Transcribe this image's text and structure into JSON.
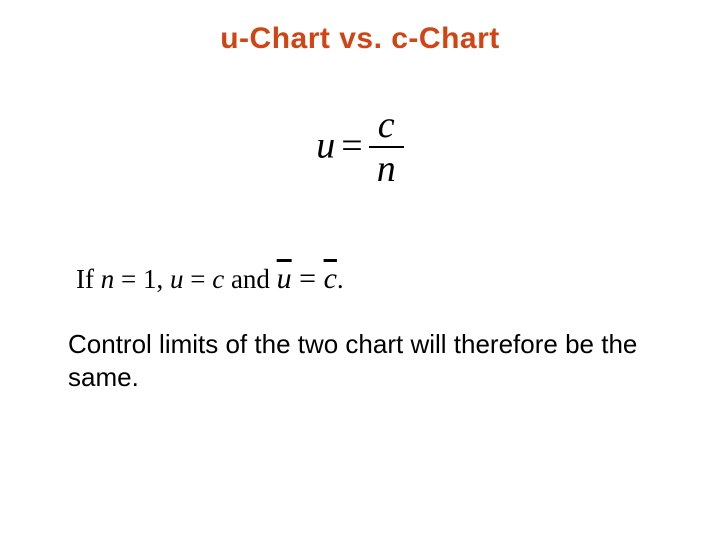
{
  "title": "u-Chart vs. c-Chart",
  "formula": {
    "lhs": "u",
    "eq": "=",
    "num": "c",
    "den": "n"
  },
  "condition": {
    "prefix": "If ",
    "n": "n",
    "eq1": " = 1, ",
    "u": "u",
    "eq2": " = ",
    "c": "c",
    "and": " and ",
    "ubar": "u",
    "eqsign": " = ",
    "cbar": "c",
    "period": "."
  },
  "conclusion": "Control limits of the two chart will therefore be the same.",
  "colors": {
    "title": "#d14414",
    "text": "#000000",
    "background": "#ffffff"
  }
}
